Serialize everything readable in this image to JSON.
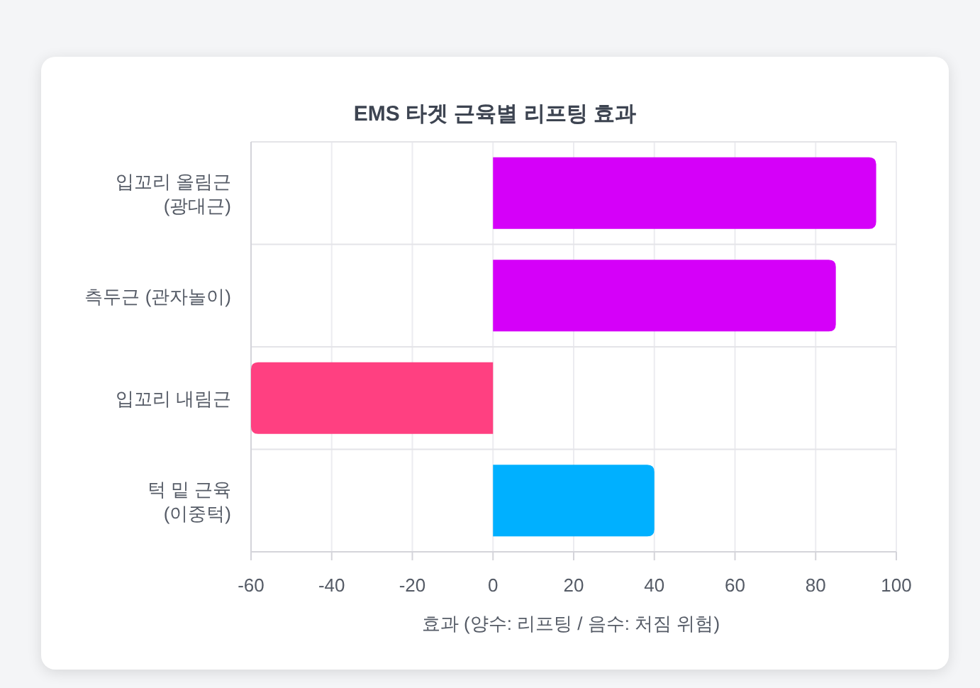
{
  "chart_data": {
    "type": "bar",
    "orientation": "horizontal",
    "title": "EMS 타겟 근육별 리프팅 효과",
    "xlabel": "효과 (양수: 리프팅 / 음수: 처짐 위험)",
    "categories": [
      "입꼬리 올림근\n(광대근)",
      "측두근 (관자놀이)",
      "입꼬리 내림근",
      "턱 밑 근육\n(이중턱)"
    ],
    "values": [
      95,
      85,
      -60,
      40
    ],
    "colors": [
      "#d500f9",
      "#d500f9",
      "#ff4081",
      "#00b0ff"
    ],
    "xlim": [
      -60,
      100
    ],
    "xticks": [
      -60,
      -40,
      -20,
      0,
      20,
      40,
      60,
      80,
      100
    ],
    "grid": true
  }
}
